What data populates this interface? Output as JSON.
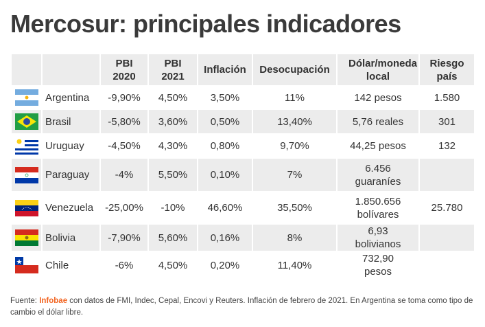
{
  "title": "Mercosur: principales indicadores",
  "headers": [
    "",
    "",
    "PBI 2020",
    "PBI 2021",
    "Inflación",
    "Desocupación",
    "Dólar/moneda local",
    "Riesgo país"
  ],
  "rows": [
    {
      "flag": "argentina-flag",
      "country": "Argentina",
      "pbi2020": "-9,90%",
      "pbi2021": "4,50%",
      "inflacion": "3,50%",
      "desocupacion": "11%",
      "dolar": "142 pesos",
      "riesgo": "1.580"
    },
    {
      "flag": "brazil-flag",
      "country": "Brasil",
      "pbi2020": "-5,80%",
      "pbi2021": "3,60%",
      "inflacion": "0,50%",
      "desocupacion": "13,40%",
      "dolar": "5,76 reales",
      "riesgo": "301"
    },
    {
      "flag": "uruguay-flag",
      "country": "Uruguay",
      "pbi2020": "-4,50%",
      "pbi2021": "4,30%",
      "inflacion": "0,80%",
      "desocupacion": "9,70%",
      "dolar": "44,25 pesos",
      "riesgo": "132"
    },
    {
      "flag": "paraguay-flag",
      "country": "Paraguay",
      "pbi2020": "-4%",
      "pbi2021": "5,50%",
      "inflacion": "0,10%",
      "desocupacion": "7%",
      "dolar": "6.456 guaraníes",
      "riesgo": ""
    },
    {
      "flag": "venezuela-flag",
      "country": "Venezuela",
      "pbi2020": "-25,00%",
      "pbi2021": "-10%",
      "inflacion": "46,60%",
      "desocupacion": "35,50%",
      "dolar": "1.850.656 bolívares",
      "riesgo": "25.780"
    },
    {
      "flag": "bolivia-flag",
      "country": "Bolivia",
      "pbi2020": "-7,90%",
      "pbi2021": "5,60%",
      "inflacion": "0,16%",
      "desocupacion": "8%",
      "dolar": "6,93 bolivianos",
      "riesgo": ""
    },
    {
      "flag": "chile-flag",
      "country": "Chile",
      "pbi2020": "-6%",
      "pbi2021": "4,50%",
      "inflacion": "0,20%",
      "desocupacion": "11,40%",
      "dolar": "732,90 pesos",
      "riesgo": ""
    }
  ],
  "footer": {
    "prefix": "Fuente: ",
    "source": "Infobae",
    "text": " con datos de FMI, Indec, Cepal, Encovi y Reuters. Inflación de febrero de 2021. En Argentina se toma como tipo de cambio el dólar libre."
  },
  "colors": {
    "accent": "#f26522",
    "row_alt": "#ececec"
  }
}
